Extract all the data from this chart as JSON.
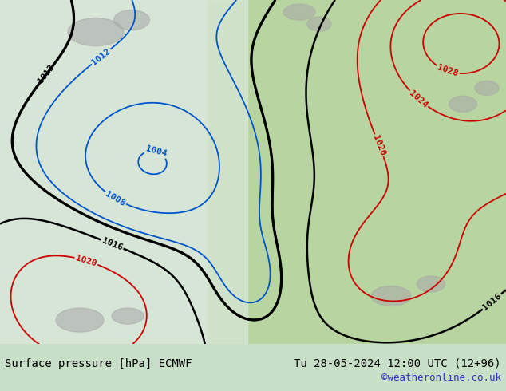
{
  "title_left": "Surface pressure [hPa] ECMWF",
  "title_right": "Tu 28-05-2024 12:00 UTC (12+96)",
  "watermark": "©weatheronline.co.uk",
  "bg_map_color": "#c8dfc8",
  "ocean_color": "#dce8dc",
  "land_color": "#b8d4a0",
  "bottom_bar_color": "#e8e8e8",
  "text_color_black": "#000000",
  "text_color_blue": "#0055cc",
  "text_color_red": "#cc0000",
  "watermark_color": "#3333bb",
  "gray_areas": "#a8a8a8",
  "fig_bg": "#c8dfc8",
  "font_size_bottom": 10,
  "font_size_label": 8
}
